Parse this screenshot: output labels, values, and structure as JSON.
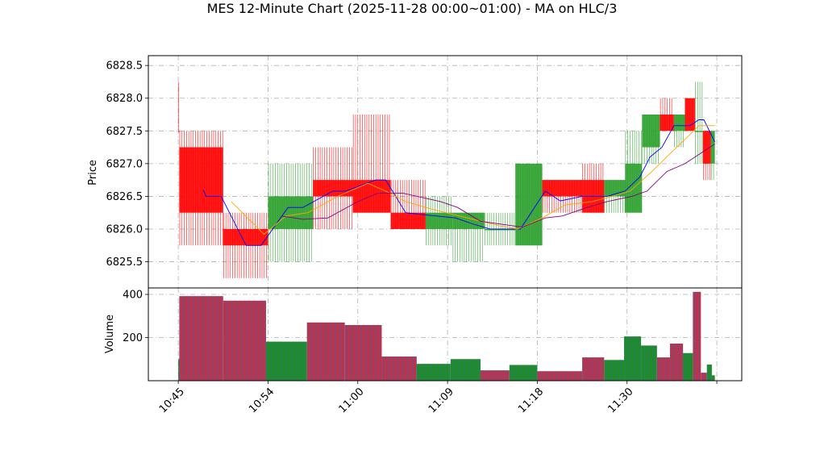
{
  "chart_data": {
    "type": "candlestick",
    "title": "MES 12-Minute Chart (2025-11-28 00:00~01:00) - MA on HLC/3",
    "price_panel": {
      "ylabel": "Price",
      "ylim": [
        6825.1,
        6828.65
      ],
      "yticks": [
        6825.5,
        6826.0,
        6826.5,
        6827.0,
        6827.5,
        6828.0,
        6828.5
      ],
      "ytick_labels": [
        "6825.5",
        "6826.0",
        "6826.5",
        "6827.0",
        "6827.5",
        "6828.0",
        "6828.5"
      ],
      "grid": true,
      "bars": [
        {
          "t": 0.0,
          "open": 6827.5,
          "high": 6828.25,
          "low": 6827.5,
          "close": 6827.5
        },
        {
          "t": 0.1,
          "open": 6827.25,
          "high": 6827.5,
          "low": 6825.75,
          "close": 6826.25
        },
        {
          "t": 4.5,
          "open": 6826.0,
          "high": 6826.25,
          "low": 6825.25,
          "close": 6825.75
        },
        {
          "t": 9.0,
          "open": 6826.0,
          "high": 6827.0,
          "low": 6825.5,
          "close": 6826.5
        },
        {
          "t": 13.5,
          "open": 6826.75,
          "high": 6827.25,
          "low": 6826.0,
          "close": 6826.5
        },
        {
          "t": 17.5,
          "open": 6826.75,
          "high": 6827.75,
          "low": 6826.25,
          "close": 6826.25
        },
        {
          "t": 21.3,
          "open": 6826.25,
          "high": 6826.75,
          "low": 6826.0,
          "close": 6826.0
        },
        {
          "t": 24.8,
          "open": 6826.0,
          "high": 6826.5,
          "low": 6825.75,
          "close": 6826.25
        },
        {
          "t": 27.5,
          "open": 6826.0,
          "high": 6826.25,
          "low": 6825.5,
          "close": 6826.25
        },
        {
          "t": 30.7,
          "open": 6826.0,
          "high": 6826.25,
          "low": 6825.75,
          "close": 6826.0
        },
        {
          "t": 33.8,
          "open": 6825.75,
          "high": 6827.0,
          "low": 6825.75,
          "close": 6827.0
        },
        {
          "t": 36.5,
          "open": 6826.75,
          "high": 6826.75,
          "low": 6826.25,
          "close": 6826.5
        },
        {
          "t": 40.5,
          "open": 6826.75,
          "high": 6827.0,
          "low": 6826.25,
          "close": 6826.25
        },
        {
          "t": 42.7,
          "open": 6826.5,
          "high": 6826.75,
          "low": 6826.25,
          "close": 6826.75
        },
        {
          "t": 44.8,
          "open": 6826.25,
          "high": 6827.5,
          "low": 6826.25,
          "close": 6827.0
        },
        {
          "t": 46.5,
          "open": 6827.25,
          "high": 6827.75,
          "low": 6827.0,
          "close": 6827.75
        },
        {
          "t": 48.3,
          "open": 6827.75,
          "high": 6828.0,
          "low": 6827.5,
          "close": 6827.5
        },
        {
          "t": 49.7,
          "open": 6827.5,
          "high": 6827.75,
          "low": 6827.25,
          "close": 6827.75
        },
        {
          "t": 50.8,
          "open": 6828.0,
          "high": 6828.0,
          "low": 6827.5,
          "close": 6827.5
        },
        {
          "t": 51.8,
          "open": 6827.5,
          "high": 6828.25,
          "low": 6827.0,
          "close": 6827.5
        },
        {
          "t": 52.6,
          "open": 6827.5,
          "high": 6827.5,
          "low": 6826.75,
          "close": 6827.0
        },
        {
          "t": 53.4,
          "open": 6827.0,
          "high": 6827.5,
          "low": 6826.75,
          "close": 6827.5
        }
      ],
      "ma_series": [
        {
          "color": "#0000ff",
          "points": [
            [
              2.5,
              6826.6
            ],
            [
              2.8,
              6826.5
            ],
            [
              4.3,
              6826.5
            ],
            [
              6.8,
              6825.75
            ],
            [
              8.3,
              6825.75
            ],
            [
              11.0,
              6826.33
            ],
            [
              12.5,
              6826.33
            ],
            [
              15.5,
              6826.58
            ],
            [
              16.8,
              6826.58
            ],
            [
              19.8,
              6826.75
            ],
            [
              20.8,
              6826.75
            ],
            [
              22.8,
              6826.25
            ],
            [
              24.5,
              6826.22
            ],
            [
              27.8,
              6826.17
            ],
            [
              29.5,
              6826.08
            ],
            [
              31.3,
              6826.0
            ],
            [
              32.5,
              6826.0
            ],
            [
              34.3,
              6826.0
            ],
            [
              36.8,
              6826.58
            ],
            [
              38.3,
              6826.43
            ],
            [
              40.5,
              6826.5
            ],
            [
              43.0,
              6826.5
            ],
            [
              44.8,
              6826.58
            ],
            [
              46.3,
              6826.8
            ],
            [
              47.3,
              6827.1
            ],
            [
              48.5,
              6827.25
            ],
            [
              49.7,
              6827.58
            ],
            [
              51.3,
              6827.58
            ],
            [
              52.2,
              6827.67
            ],
            [
              52.7,
              6827.67
            ],
            [
              53.8,
              6827.33
            ]
          ]
        },
        {
          "color": "#ffa500",
          "points": [
            [
              5.3,
              6826.42
            ],
            [
              8.6,
              6825.92
            ],
            [
              10.8,
              6826.2
            ],
            [
              13.0,
              6826.25
            ],
            [
              16.0,
              6826.5
            ],
            [
              19.0,
              6826.7
            ],
            [
              20.8,
              6826.58
            ],
            [
              22.8,
              6826.42
            ],
            [
              25.5,
              6826.3
            ],
            [
              29.0,
              6826.17
            ],
            [
              32.2,
              6826.05
            ],
            [
              34.0,
              6826.0
            ],
            [
              36.5,
              6826.17
            ],
            [
              38.8,
              6826.37
            ],
            [
              41.5,
              6826.42
            ],
            [
              43.5,
              6826.5
            ],
            [
              45.3,
              6826.58
            ],
            [
              47.5,
              6826.88
            ],
            [
              49.3,
              6827.15
            ],
            [
              51.0,
              6827.4
            ],
            [
              52.2,
              6827.58
            ],
            [
              53.8,
              6827.58
            ]
          ]
        },
        {
          "color": "#800080",
          "points": [
            [
              10.3,
              6826.2
            ],
            [
              12.5,
              6826.15
            ],
            [
              15.0,
              6826.17
            ],
            [
              18.0,
              6826.42
            ],
            [
              20.0,
              6826.55
            ],
            [
              22.5,
              6826.55
            ],
            [
              26.3,
              6826.42
            ],
            [
              28.0,
              6826.33
            ],
            [
              30.3,
              6826.12
            ],
            [
              34.5,
              6826.03
            ],
            [
              36.8,
              6826.17
            ],
            [
              38.5,
              6826.2
            ],
            [
              41.0,
              6826.33
            ],
            [
              43.0,
              6826.42
            ],
            [
              45.5,
              6826.5
            ],
            [
              47.0,
              6826.58
            ],
            [
              49.0,
              6826.88
            ],
            [
              50.8,
              6827.0
            ],
            [
              53.8,
              6827.3
            ]
          ]
        }
      ]
    },
    "volume_panel": {
      "ylabel": "Volume",
      "ylim": [
        0,
        430
      ],
      "yticks": [
        200,
        400
      ],
      "ytick_labels": [
        "200",
        "400"
      ],
      "grid": true,
      "bars": [
        {
          "t0": 0.0,
          "t1": 0.1,
          "value": 100,
          "dir": "up"
        },
        {
          "t0": 0.1,
          "t1": 4.5,
          "value": 392,
          "dir": "down"
        },
        {
          "t0": 4.5,
          "t1": 8.8,
          "value": 371,
          "dir": "down"
        },
        {
          "t0": 8.8,
          "t1": 12.9,
          "value": 181,
          "dir": "up"
        },
        {
          "t0": 12.9,
          "t1": 16.7,
          "value": 270,
          "dir": "down"
        },
        {
          "t0": 16.7,
          "t1": 20.4,
          "value": 258,
          "dir": "down"
        },
        {
          "t0": 20.4,
          "t1": 23.9,
          "value": 112,
          "dir": "down"
        },
        {
          "t0": 23.9,
          "t1": 27.3,
          "value": 78,
          "dir": "up"
        },
        {
          "t0": 27.3,
          "t1": 30.3,
          "value": 100,
          "dir": "up"
        },
        {
          "t0": 30.3,
          "t1": 33.2,
          "value": 48,
          "dir": "down"
        },
        {
          "t0": 33.2,
          "t1": 36.0,
          "value": 73,
          "dir": "up"
        },
        {
          "t0": 36.0,
          "t1": 40.5,
          "value": 44,
          "dir": "down"
        },
        {
          "t0": 40.5,
          "t1": 42.7,
          "value": 108,
          "dir": "down"
        },
        {
          "t0": 42.7,
          "t1": 44.7,
          "value": 96,
          "dir": "up"
        },
        {
          "t0": 44.7,
          "t1": 46.4,
          "value": 205,
          "dir": "up"
        },
        {
          "t0": 46.4,
          "t1": 48.0,
          "value": 163,
          "dir": "up"
        },
        {
          "t0": 48.0,
          "t1": 49.3,
          "value": 108,
          "dir": "down"
        },
        {
          "t0": 49.3,
          "t1": 50.6,
          "value": 172,
          "dir": "down"
        },
        {
          "t0": 50.6,
          "t1": 51.6,
          "value": 128,
          "dir": "up"
        },
        {
          "t0": 51.6,
          "t1": 52.4,
          "value": 412,
          "dir": "down"
        },
        {
          "t0": 52.4,
          "t1": 53.0,
          "value": 37,
          "dir": "down"
        },
        {
          "t0": 53.0,
          "t1": 53.5,
          "value": 75,
          "dir": "up"
        },
        {
          "t0": 53.5,
          "t1": 53.8,
          "value": 25,
          "dir": "up"
        }
      ]
    },
    "x_axis": {
      "range": [
        -3.0,
        56.5
      ],
      "ticks": [
        0,
        9,
        18,
        27,
        36,
        45,
        54
      ],
      "tick_labels": [
        "10:45",
        "10:54",
        "11:00",
        "11:09",
        "11:18",
        "11:30",
        ""
      ]
    },
    "colors": {
      "up": "#2ca02c",
      "down": "#ff0000",
      "volume_edge": "#1f77b4",
      "grid": "#b0b0b0"
    }
  }
}
